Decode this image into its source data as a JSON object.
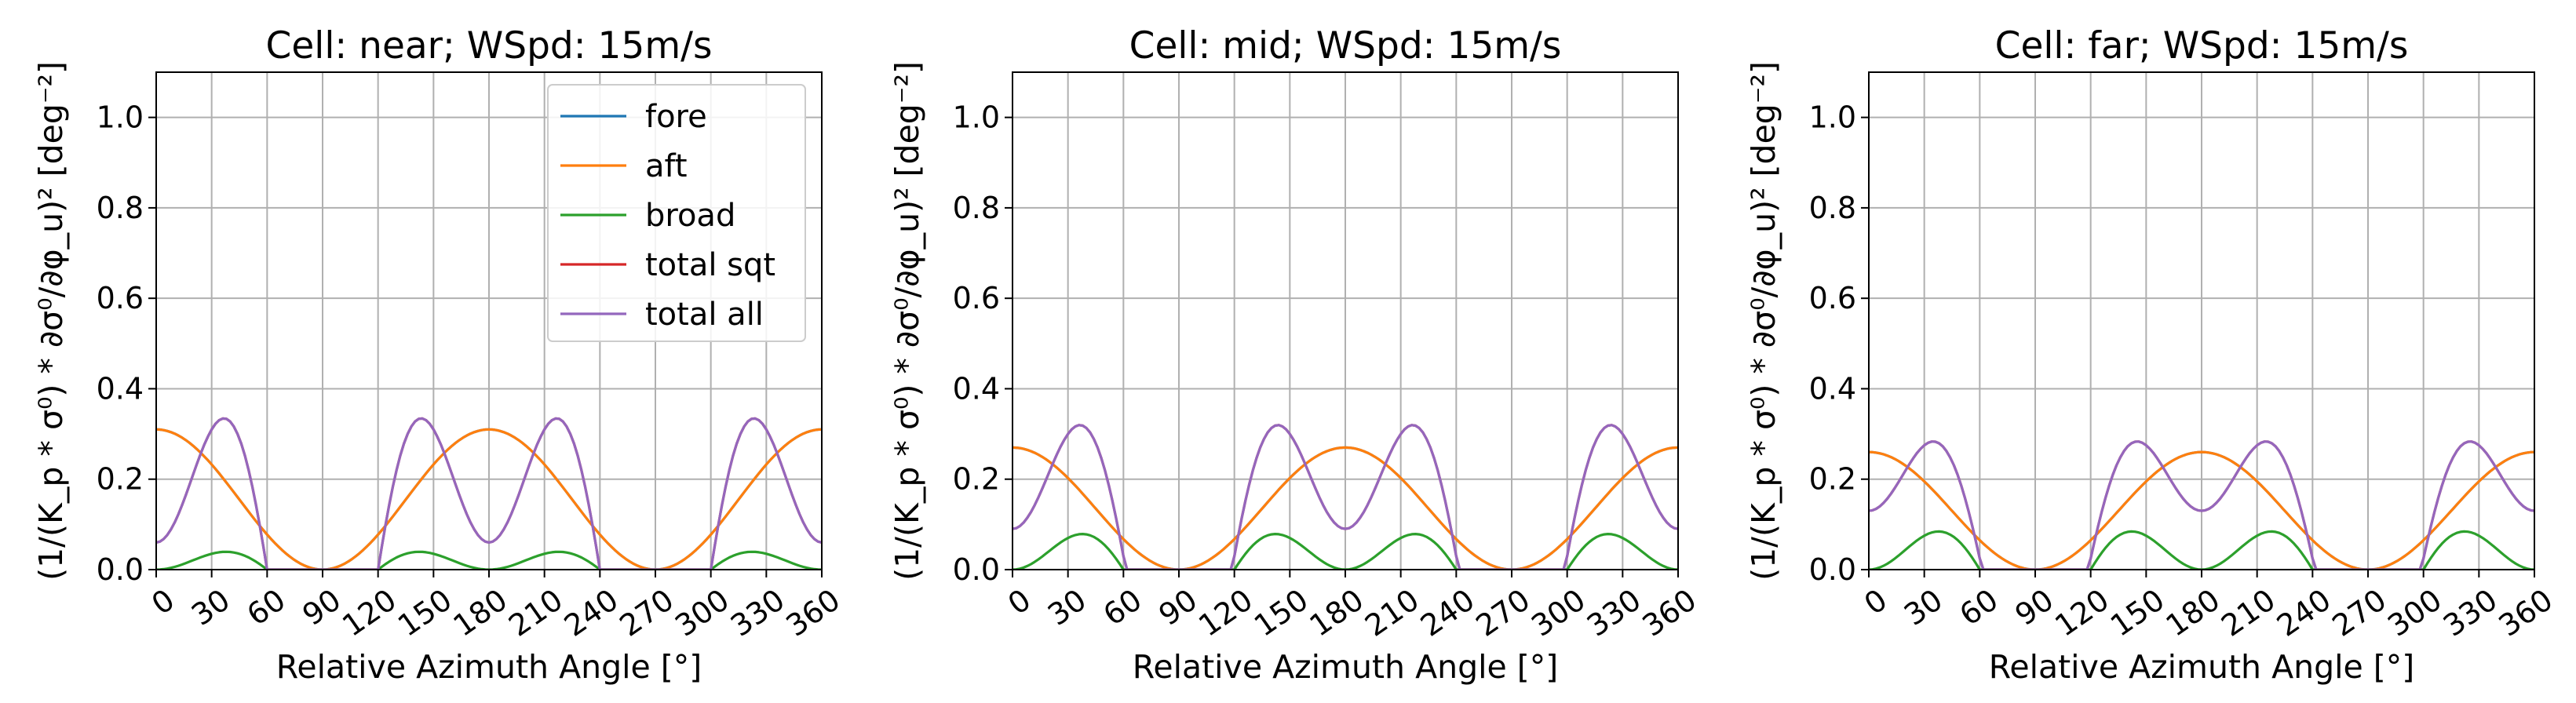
{
  "chart_data": [
    {
      "type": "line",
      "title": "Cell: near; WSpd: 15m/s",
      "xlabel": "Relative Azimuth Angle [°]",
      "ylabel": "(1/(K_p * σ⁰) * ∂σ⁰/∂φ_u)² [deg⁻²]",
      "xlim": [
        0,
        360
      ],
      "ylim": [
        0,
        1.1
      ],
      "xticks": [
        0,
        30,
        60,
        90,
        120,
        150,
        180,
        210,
        240,
        270,
        300,
        330,
        360
      ],
      "yticks": [
        0.0,
        0.2,
        0.4,
        0.6,
        0.8,
        1.0
      ],
      "grid": true,
      "legend": "top-right",
      "series": [
        {
          "name": "fore",
          "color": "#1f77b4",
          "params": {
            "A": 0.155,
            "B": 0.0,
            "C": 0.155,
            "p1": 0,
            "p2": 0
          }
        },
        {
          "name": "aft",
          "color": "#ff7f0e",
          "params": {
            "A": 0.155,
            "B": 0.0,
            "C": 0.155,
            "p1": 0,
            "p2": 0
          }
        },
        {
          "name": "broad",
          "color": "#2ca02c",
          "params": {
            "A": 0.035,
            "B": -0.035,
            "C": 0.0,
            "p1": 0,
            "p2": 0
          }
        },
        {
          "name": "total sqt",
          "color": "#d62728",
          "params": {
            "A": 0.31,
            "B": -0.27,
            "C": 0.02,
            "p1": 0,
            "p2": 0
          }
        },
        {
          "name": "total all",
          "color": "#9467bd",
          "params": {
            "A": 0.31,
            "B": -0.27,
            "C": 0.02,
            "p1": 0,
            "p2": 0
          }
        }
      ]
    },
    {
      "type": "line",
      "title": "Cell: mid; WSpd: 15m/s",
      "xlabel": "Relative Azimuth Angle [°]",
      "ylabel": "(1/(K_p * σ⁰) * ∂σ⁰/∂φ_u)² [deg⁻²]",
      "xlim": [
        0,
        360
      ],
      "ylim": [
        0,
        1.1
      ],
      "xticks": [
        0,
        30,
        60,
        90,
        120,
        150,
        180,
        210,
        240,
        270,
        300,
        330,
        360
      ],
      "yticks": [
        0.0,
        0.2,
        0.4,
        0.6,
        0.8,
        1.0
      ],
      "grid": true,
      "series": [
        {
          "name": "fore",
          "color": "#1f77b4",
          "params": {
            "A": 0.135,
            "B": 0.0,
            "C": 0.135,
            "p1": 0,
            "p2": 0
          }
        },
        {
          "name": "aft",
          "color": "#ff7f0e",
          "params": {
            "A": 0.135,
            "B": 0.0,
            "C": 0.135,
            "p1": 0,
            "p2": 0
          }
        },
        {
          "name": "broad",
          "color": "#2ca02c",
          "params": {
            "A": 0.07,
            "B": -0.07,
            "C": 0.0,
            "p1": 0,
            "p2": 0
          }
        },
        {
          "name": "total sqt",
          "color": "#d62728",
          "params": {
            "A": 0.27,
            "B": -0.23,
            "C": 0.05,
            "p1": 0,
            "p2": 0
          }
        },
        {
          "name": "total all",
          "color": "#9467bd",
          "params": {
            "A": 0.27,
            "B": -0.23,
            "C": 0.05,
            "p1": 0,
            "p2": 0
          }
        }
      ]
    },
    {
      "type": "line",
      "title": "Cell: far; WSpd: 15m/s",
      "xlabel": "Relative Azimuth Angle [°]",
      "ylabel": "(1/(K_p * σ⁰) * ∂σ⁰/∂φ_u)² [deg⁻²]",
      "xlim": [
        0,
        360
      ],
      "ylim": [
        0,
        1.1
      ],
      "xticks": [
        0,
        30,
        60,
        90,
        120,
        150,
        180,
        210,
        240,
        270,
        300,
        330,
        360
      ],
      "yticks": [
        0.0,
        0.2,
        0.4,
        0.6,
        0.8,
        1.0
      ],
      "grid": true,
      "series": [
        {
          "name": "fore",
          "color": "#1f77b4",
          "params": {
            "A": 0.13,
            "B": 0.0,
            "C": 0.13,
            "p1": 0,
            "p2": 0
          }
        },
        {
          "name": "aft",
          "color": "#ff7f0e",
          "params": {
            "A": 0.13,
            "B": 0.0,
            "C": 0.13,
            "p1": 0,
            "p2": 0
          }
        },
        {
          "name": "broad",
          "color": "#2ca02c",
          "params": {
            "A": 0.075,
            "B": -0.075,
            "C": 0.0,
            "p1": 0,
            "p2": 0
          }
        },
        {
          "name": "total sqt",
          "color": "#d62728",
          "params": {
            "A": 0.25,
            "B": -0.18,
            "C": 0.06,
            "p1": 0,
            "p2": 0
          }
        },
        {
          "name": "total all",
          "color": "#9467bd",
          "params": {
            "A": 0.25,
            "B": -0.18,
            "C": 0.06,
            "p1": 0,
            "p2": 0
          }
        }
      ]
    }
  ]
}
